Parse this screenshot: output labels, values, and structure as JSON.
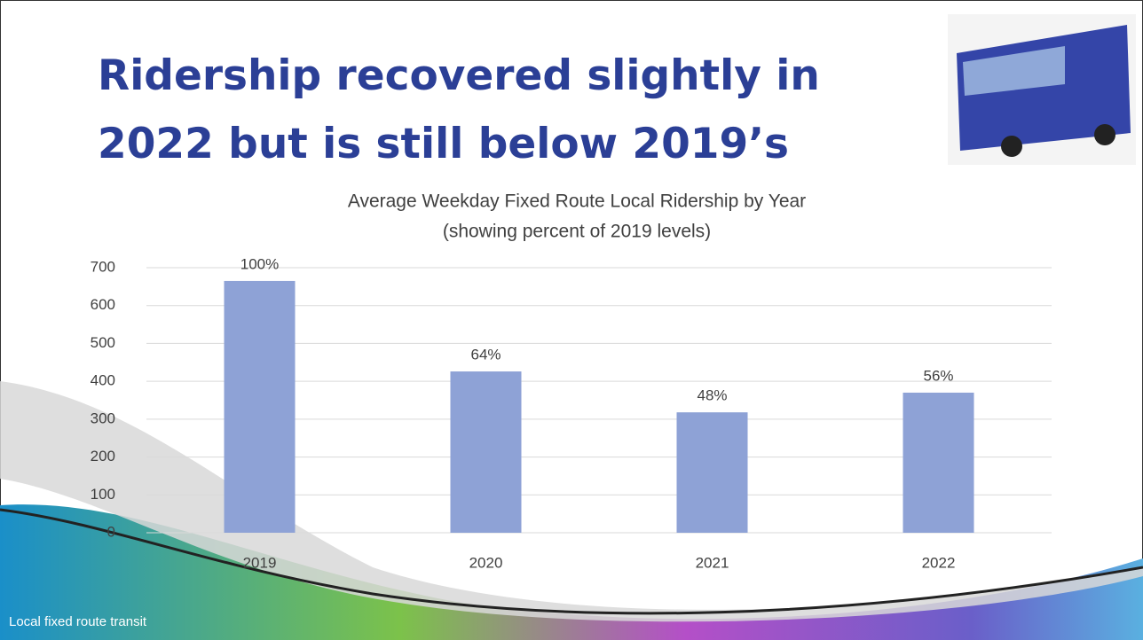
{
  "slide": {
    "title": [
      "Ridership recovered slightly in",
      "2022 but is still below 2019’s"
    ],
    "footer": "Local fixed route transit"
  },
  "chart_data": {
    "type": "bar",
    "title": "Average Weekday Fixed Route Local Ridership by Year",
    "subtitle": "(showing percent of 2019 levels)",
    "categories": [
      "2019",
      "2020",
      "2021",
      "2022"
    ],
    "values": [
      665,
      426,
      318,
      370
    ],
    "annotations": [
      "100%",
      "64%",
      "48%",
      "56%"
    ],
    "color": "#8ea2d6",
    "ylim": [
      0,
      700
    ],
    "yticks": [
      0,
      100,
      200,
      300,
      400,
      500,
      600,
      700
    ],
    "grid": true
  }
}
